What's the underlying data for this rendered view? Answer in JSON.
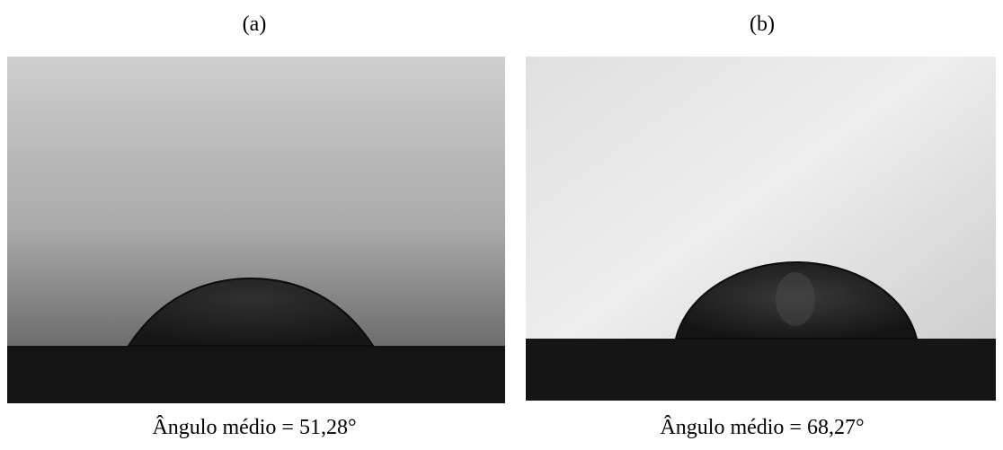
{
  "panels": [
    {
      "label": "(a)",
      "caption": "Ângulo médio = 51,28°"
    },
    {
      "label": "(b)",
      "caption": "Ângulo médio = 68,27°"
    }
  ]
}
